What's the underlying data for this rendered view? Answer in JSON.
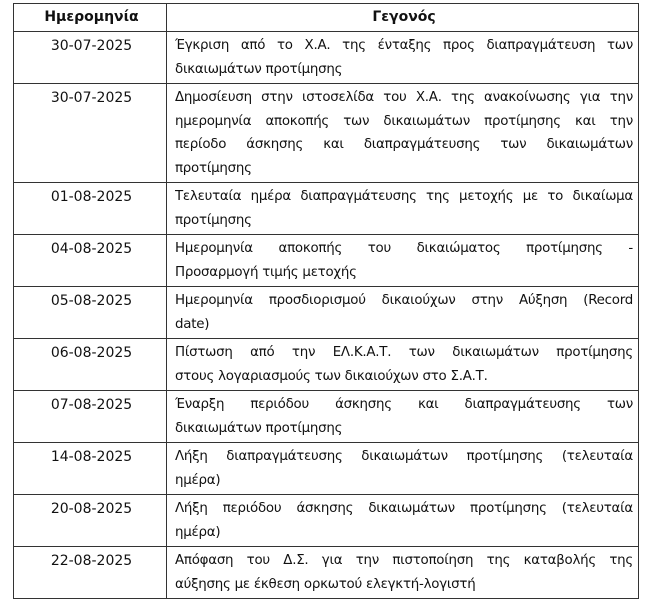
{
  "table": {
    "headers": [
      "Ημερομηνία",
      "Γεγονός"
    ],
    "rows": [
      {
        "date": "30-07-2025",
        "event": [
          "Έγκριση από το Χ.Α. της ένταξης προς διαπραγμάτευση των",
          "δικαιωμάτων προτίμησης"
        ]
      },
      {
        "date": "30-07-2025",
        "event": [
          "Δημοσίευση στην ιστοσελίδα του Χ.Α. της ανακοίνωσης για την",
          "ημερομηνία αποκοπής των δικαιωμάτων προτίμησης και την",
          "περίοδο άσκησης και διαπραγμάτευσης των δικαιωμάτων",
          "προτίμησης"
        ]
      },
      {
        "date": "01-08-2025",
        "event": [
          "Τελευταία ημέρα διαπραγμάτευσης της μετοχής με το δικαίωμα",
          "προτίμησης"
        ]
      },
      {
        "date": "04-08-2025",
        "event": [
          "Ημερομηνία αποκοπής του δικαιώματος προτίμησης -",
          "Προσαρμογή τιμής μετοχής"
        ]
      },
      {
        "date": "05-08-2025",
        "event": [
          "Ημερομηνία προσδιορισμού δικαιούχων στην Αύξηση (Record",
          "date)"
        ]
      },
      {
        "date": "06-08-2025",
        "event": [
          "Πίστωση από την ΕΛ.Κ.Α.Τ. των δικαιωμάτων προτίμησης",
          "στους λογαριασμούς των δικαιούχων στο Σ.Α.Τ."
        ]
      },
      {
        "date": "07-08-2025",
        "event": [
          "Έναρξη περιόδου άσκησης και διαπραγμάτευσης των",
          "δικαιωμάτων προτίμησης"
        ]
      },
      {
        "date": "14-08-2025",
        "event": [
          "Λήξη διαπραγμάτευσης δικαιωμάτων προτίμησης (τελευταία",
          "ημέρα)"
        ]
      },
      {
        "date": "20-08-2025",
        "event": [
          "Λήξη περιόδου άσκησης δικαιωμάτων προτίμησης (τελευταία",
          "ημέρα)"
        ]
      },
      {
        "date": "22-08-2025",
        "event": [
          "Απόφαση του Δ.Σ. για την πιστοποίηση της καταβολής της",
          "αύξησης με έκθεση ορκωτού ελεγκτή-λογιστή"
        ]
      }
    ]
  }
}
